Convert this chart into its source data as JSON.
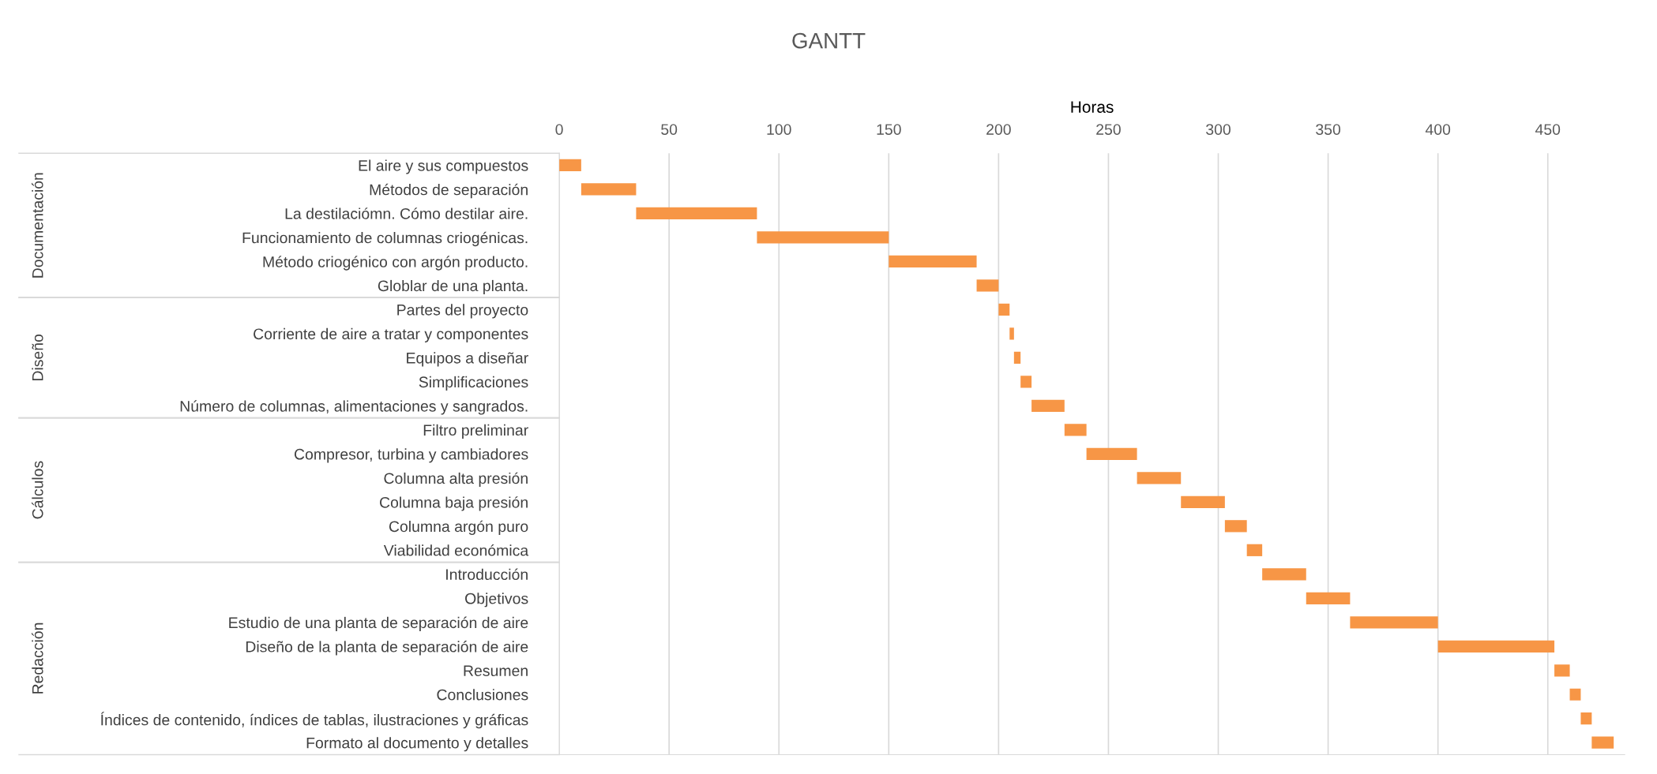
{
  "chart_data": {
    "type": "bar",
    "orientation": "horizontal",
    "title": "GANTT",
    "xlabel": "Horas",
    "categories": [
      "El aire y sus compuestos",
      "Métodos de separación",
      "La destilaciómn. Cómo destilar aire.",
      "Funcionamiento de columnas criogénicas.",
      "Método criogénico con argón producto.",
      "Globlar de una planta.",
      "Partes del proyecto",
      "Corriente de aire a tratar y componentes",
      "Equipos a diseñar",
      "Simplificaciones",
      "Número de columnas, alimentaciones y sangrados.",
      "Filtro preliminar",
      "Compresor, turbina y cambiadores",
      "Columna alta presión",
      "Columna baja presión",
      "Columna argón puro",
      "Viabilidad económica",
      "Introducción",
      "Objetivos",
      "Estudio de una planta de separación de aire",
      "Diseño de la planta de separación de aire",
      "Resumen",
      "Conclusiones",
      "Índices de contenido, índices de tablas, ilustraciones y gráficas",
      "Formato al documento y detalles"
    ],
    "base": [
      0,
      10,
      35,
      90,
      150,
      190,
      200,
      205,
      207,
      210,
      215,
      230,
      240,
      263,
      283,
      303,
      313,
      320,
      340,
      360,
      400,
      453,
      460,
      465,
      470
    ],
    "values": [
      10,
      25,
      55,
      60,
      40,
      10,
      5,
      2,
      3,
      5,
      15,
      10,
      23,
      20,
      20,
      10,
      7,
      20,
      20,
      40,
      53,
      7,
      5,
      5,
      10
    ],
    "color": "#f79646",
    "xlim": [
      0,
      485
    ],
    "xticks": [
      0,
      50,
      100,
      150,
      200,
      250,
      300,
      350,
      400,
      450
    ],
    "grid": "x",
    "annotations": [
      "Documentación",
      "Diseño",
      "Cálculos",
      "Redacción"
    ]
  }
}
